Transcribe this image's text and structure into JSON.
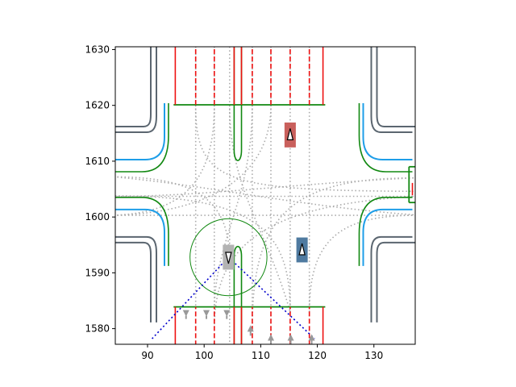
{
  "chart_data": {
    "type": "scatter",
    "title": "",
    "xlabel": "",
    "ylabel": "",
    "xlim": [
      84.3,
      137.3
    ],
    "ylim": [
      1577.2,
      1630.5
    ],
    "xticks": [
      90,
      100,
      110,
      120,
      130
    ],
    "yticks": [
      1580,
      1590,
      1600,
      1610,
      1620,
      1630
    ],
    "grid": false,
    "legend": "none",
    "colors": {
      "road_edge": "#5b6670",
      "lane_center": "#1e9ee8",
      "stop_boundary": "#118811",
      "lane_divider": "#ee1111",
      "path_dotted": "#aaaaaa",
      "ego_vehicle": "#b3b3b3",
      "agent_red": "#c9605c",
      "agent_blue": "#4f7aa0",
      "view_cone": "#0000cc",
      "radius_circle": "#118811",
      "arrow": "#999999"
    },
    "ego_vehicle": {
      "x": 104.3,
      "y": 1592.8,
      "width": 2.0,
      "length": 4.4
    },
    "agents": [
      {
        "name": "red",
        "x": 115.2,
        "y": 1614.7,
        "width": 2.0,
        "length": 4.4
      },
      {
        "name": "blue",
        "x": 117.3,
        "y": 1594.1,
        "width": 2.0,
        "length": 4.4
      }
    ],
    "radius_circle": {
      "x": 104.3,
      "y": 1592.8,
      "r": 6.8
    },
    "view_cone": {
      "apex": [
        104.3,
        1592.8
      ],
      "left": [
        90.8,
        1578.2
      ],
      "right": [
        119.5,
        1578.2
      ]
    },
    "arrows": [
      {
        "x": 96.8,
        "y": 1582.6,
        "dir": "down"
      },
      {
        "x": 100.4,
        "y": 1582.6,
        "dir": "down"
      },
      {
        "x": 104.0,
        "y": 1582.6,
        "dir": "down"
      },
      {
        "x": 108.2,
        "y": 1579.6,
        "dir": "up"
      },
      {
        "x": 111.8,
        "y": 1578.0,
        "dir": "up"
      },
      {
        "x": 115.3,
        "y": 1578.0,
        "dir": "up"
      },
      {
        "x": 119.0,
        "y": 1578.0,
        "dir": "up"
      }
    ]
  }
}
